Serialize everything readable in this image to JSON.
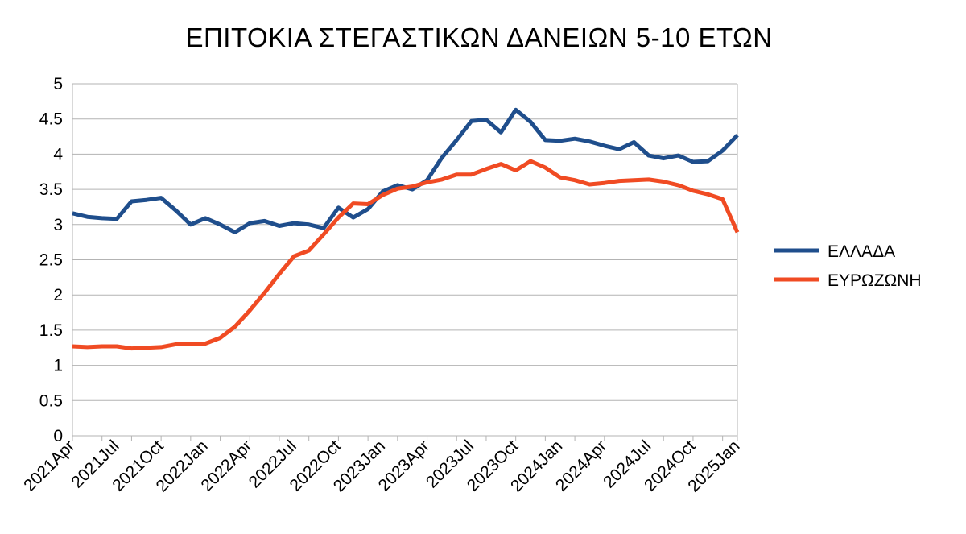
{
  "chart_data": {
    "type": "line",
    "title": "ΕΠΙΤΟΚΙΑ ΣΤΕΓΑΣΤΙΚΩΝ ΔΑΝΕΙΩΝ 5-10 ΕΤΩΝ",
    "xlabel": "",
    "ylabel": "",
    "ylim": [
      0,
      5
    ],
    "yticks": [
      "0",
      "0.5",
      "1",
      "1.5",
      "2",
      "2.5",
      "3",
      "3.5",
      "4",
      "4.5",
      "5"
    ],
    "grid": true,
    "legend_position": "right",
    "x_tick_labels": [
      "2021Apr",
      "2021Jul",
      "2021Oct",
      "2022Jan",
      "2022Apr",
      "2022Jul",
      "2022Oct",
      "2023Jan",
      "2023Apr",
      "2023Jul",
      "2023Oct",
      "2024Jan",
      "2024Apr",
      "2024Jul",
      "2024Oct",
      "2025Jan"
    ],
    "categories": [
      "2021Apr",
      "2021May",
      "2021Jun",
      "2021Jul",
      "2021Aug",
      "2021Sep",
      "2021Oct",
      "2021Nov",
      "2021Dec",
      "2022Jan",
      "2022Feb",
      "2022Mar",
      "2022Apr",
      "2022May",
      "2022Jun",
      "2022Jul",
      "2022Aug",
      "2022Sep",
      "2022Oct",
      "2022Nov",
      "2022Dec",
      "2023Jan",
      "2023Feb",
      "2023Mar",
      "2023Apr",
      "2023May",
      "2023Jun",
      "2023Jul",
      "2023Aug",
      "2023Sep",
      "2023Oct",
      "2023Nov",
      "2023Dec",
      "2024Jan",
      "2024Feb",
      "2024Mar",
      "2024Apr",
      "2024May",
      "2024Jun",
      "2024Jul",
      "2024Aug",
      "2024Sep",
      "2024Oct",
      "2024Nov",
      "2024Dec",
      "2025Jan"
    ],
    "series": [
      {
        "name": "ΕΛΛΑΔΑ",
        "color": "#1f4e8c",
        "values": [
          3.16,
          3.11,
          3.09,
          3.08,
          3.33,
          3.35,
          3.38,
          3.2,
          3.0,
          3.09,
          3.0,
          2.89,
          3.02,
          3.05,
          2.98,
          3.02,
          3.0,
          2.95,
          3.24,
          3.1,
          3.22,
          3.47,
          3.56,
          3.5,
          3.63,
          3.95,
          4.2,
          4.47,
          4.49,
          4.31,
          4.63,
          4.46,
          4.2,
          4.19,
          4.22,
          4.18,
          4.12,
          4.07,
          4.17,
          3.98,
          3.94,
          3.98,
          3.89,
          3.9,
          4.05,
          4.27
        ]
      },
      {
        "name": "ΕΥΡΩΖΩΝΗ",
        "color": "#f04b23",
        "values": [
          1.27,
          1.26,
          1.27,
          1.27,
          1.24,
          1.25,
          1.26,
          1.3,
          1.3,
          1.31,
          1.39,
          1.55,
          1.78,
          2.03,
          2.3,
          2.55,
          2.63,
          2.86,
          3.1,
          3.3,
          3.29,
          3.42,
          3.51,
          3.54,
          3.6,
          3.64,
          3.71,
          3.71,
          3.79,
          3.86,
          3.77,
          3.9,
          3.81,
          3.67,
          3.63,
          3.57,
          3.59,
          3.62,
          3.63,
          3.64,
          3.61,
          3.56,
          3.48,
          3.43,
          3.36,
          2.89
        ]
      }
    ]
  }
}
